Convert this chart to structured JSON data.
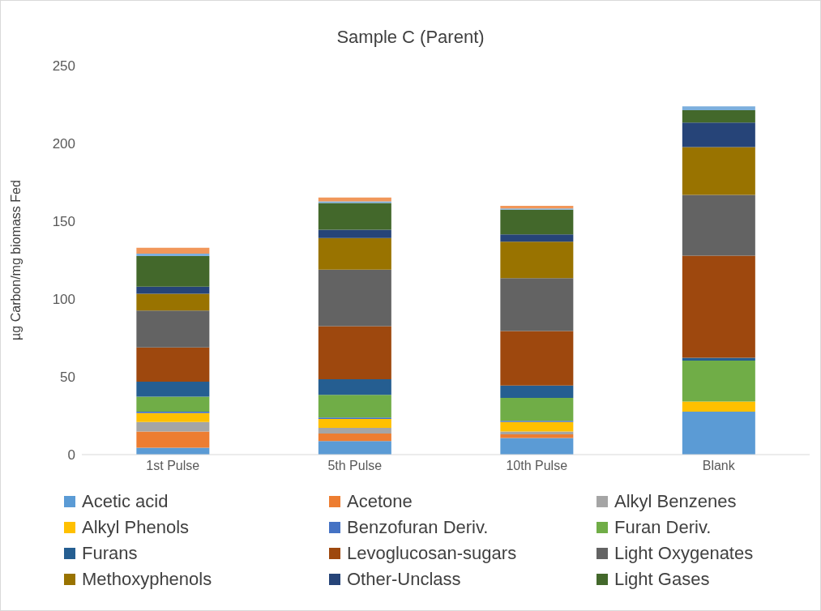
{
  "chart_data": {
    "type": "bar",
    "title": "Sample C (Parent)",
    "ylabel": "µg Carbon/mg biomass Fed",
    "categories": [
      "1st Pulse",
      "5th Pulse",
      "10th Pulse",
      "Blank"
    ],
    "stacked": true,
    "ylim": [
      0,
      250
    ],
    "yticks": [
      0,
      50,
      100,
      150,
      200,
      250
    ],
    "legend": "bottom",
    "series": [
      {
        "name": "Acetic acid",
        "color": "#5b9bd5",
        "values": [
          4.4,
          8.7,
          10.7,
          27.6
        ]
      },
      {
        "name": "Acetone",
        "color": "#ed7d31",
        "values": [
          10.4,
          4.8,
          2.3,
          0
        ]
      },
      {
        "name": "Alkyl Benzenes",
        "color": "#a5a5a5",
        "values": [
          6.2,
          3.7,
          1.9,
          null
        ]
      },
      {
        "name": "Alkyl Phenols",
        "color": "#ffc000",
        "values": [
          5.7,
          5.7,
          6.0,
          6.5
        ]
      },
      {
        "name": "Benzofuran Deriv.",
        "color": "#4472c4",
        "values": [
          0.9,
          0.9,
          0.8,
          0
        ]
      },
      {
        "name": "Furan Deriv.",
        "color": "#70ad47",
        "values": [
          9.7,
          14.6,
          14.7,
          26.3
        ]
      },
      {
        "name": "Furans",
        "color": "#255e91",
        "values": [
          9.6,
          10.1,
          8.0,
          1.8
        ]
      },
      {
        "name": "Levoglucosan-sugars",
        "color": "#9e480e",
        "values": [
          22.0,
          34.0,
          35.0,
          65.6
        ]
      },
      {
        "name": "Light Oxygenates",
        "color": "#636363",
        "values": [
          23.7,
          36.4,
          34.0,
          39.1
        ]
      },
      {
        "name": "Methoxyphenols",
        "color": "#997300",
        "values": [
          10.8,
          20.3,
          23.4,
          30.7
        ]
      },
      {
        "name": "Other-Unclass",
        "color": "#264478",
        "values": [
          4.6,
          5.3,
          4.8,
          15.8
        ]
      },
      {
        "name": "Light Gases",
        "color": "#43682b",
        "values": [
          19.6,
          17.2,
          15.8,
          8.0
        ]
      },
      {
        "color": "#7cafdd",
        "values": [
          1.6,
          1.0,
          0.8,
          2.4
        ]
      },
      {
        "color": "#f1975a",
        "values": [
          3.7,
          2.5,
          1.7,
          0
        ]
      }
    ]
  }
}
